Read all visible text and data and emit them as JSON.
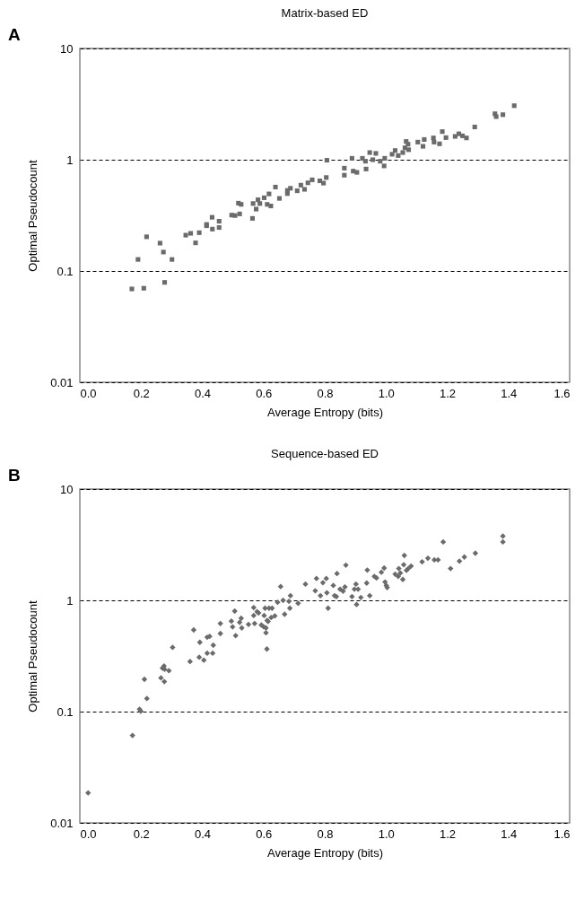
{
  "chart_data": [
    {
      "type": "scatter",
      "title": "Matrix-based ED",
      "xlabel": "Average Entropy (bits)",
      "ylabel": "Optimal Pseudocount",
      "annotations": [
        "A"
      ],
      "color": "#6b6b6b",
      "marker": "square",
      "log": "y",
      "grid": "y",
      "line_style": "dashed",
      "xlim": [
        0,
        1.6
      ],
      "xticks": [
        {
          "value": 0,
          "label": "0.0"
        },
        {
          "value": 0.2,
          "label": "0.2"
        },
        {
          "value": 0.4,
          "label": "0.4"
        },
        {
          "value": 0.6,
          "label": "0.6"
        },
        {
          "value": 0.8,
          "label": "0.8"
        },
        {
          "value": 1,
          "label": "1.0"
        },
        {
          "value": 1.2,
          "label": "1.2"
        },
        {
          "value": 1.4,
          "label": "1.4"
        },
        {
          "value": 1.6,
          "label": "1.6"
        }
      ],
      "ylim": [
        0.01,
        10
      ],
      "yticks": [
        0.01,
        0.1,
        1,
        10
      ],
      "x": [
        0.17,
        0.209,
        0.277,
        0.19,
        0.218,
        0.262,
        0.273,
        0.301,
        0.346,
        0.362,
        0.378,
        0.39,
        0.414,
        0.414,
        0.432,
        0.433,
        0.455,
        0.455,
        0.496,
        0.507,
        0.522,
        0.518,
        0.527,
        0.564,
        0.566,
        0.576,
        0.582,
        0.588,
        0.602,
        0.618,
        0.624,
        0.612,
        0.639,
        0.652,
        0.678,
        0.688,
        0.678,
        0.71,
        0.722,
        0.734,
        0.745,
        0.759,
        0.784,
        0.796,
        0.805,
        0.807,
        0.889,
        0.864,
        0.864,
        0.893,
        0.905,
        0.923,
        0.933,
        0.947,
        0.967,
        0.957,
        0.935,
        0.981,
        0.994,
        0.996,
        1.02,
        1.03,
        1.04,
        1.055,
        1.062,
        1.072,
        1.066,
        1.074,
        1.104,
        1.125,
        1.121,
        1.155,
        1.157,
        1.175,
        1.184,
        1.196,
        1.226,
        1.238,
        1.25,
        1.263,
        1.29,
        1.356,
        1.36,
        1.382,
        1.419
      ],
      "values": [
        0.069,
        0.07,
        0.079,
        0.127,
        0.203,
        0.178,
        0.148,
        0.127,
        0.21,
        0.218,
        0.179,
        0.221,
        0.255,
        0.262,
        0.304,
        0.238,
        0.28,
        0.246,
        0.318,
        0.315,
        0.326,
        0.407,
        0.397,
        0.297,
        0.404,
        0.36,
        0.437,
        0.404,
        0.455,
        0.493,
        0.384,
        0.397,
        0.568,
        0.449,
        0.53,
        0.554,
        0.496,
        0.526,
        0.591,
        0.542,
        0.62,
        0.66,
        0.646,
        0.616,
        0.692,
        0.99,
        1.03,
        0.84,
        0.726,
        0.79,
        0.77,
        1.03,
        0.97,
        1.16,
        1.14,
        1.0,
        0.825,
        0.97,
        0.88,
        1.03,
        1.12,
        1.21,
        1.09,
        1.16,
        1.28,
        1.38,
        1.46,
        1.23,
        1.44,
        1.52,
        1.32,
        1.57,
        1.44,
        1.39,
        1.79,
        1.58,
        1.62,
        1.71,
        1.64,
        1.57,
        1.97,
        2.59,
        2.44,
        2.54,
        3.06
      ]
    },
    {
      "type": "scatter",
      "title": "Sequence-based ED",
      "xlabel": "Average Entropy (bits)",
      "ylabel": "Optimal Pseudocount",
      "annotations": [
        "B"
      ],
      "color": "#6b6b6b",
      "marker": "diamond",
      "log": "y",
      "grid": "y",
      "line_style": "dashed",
      "xlim": [
        0,
        1.6
      ],
      "xticks": [
        {
          "value": 0,
          "label": "0.0"
        },
        {
          "value": 0.2,
          "label": "0.2"
        },
        {
          "value": 0.4,
          "label": "0.4"
        },
        {
          "value": 0.6,
          "label": "0.6"
        },
        {
          "value": 0.8,
          "label": "0.8"
        },
        {
          "value": 1,
          "label": "1.0"
        },
        {
          "value": 1.2,
          "label": "1.2"
        },
        {
          "value": 1.4,
          "label": "1.4"
        },
        {
          "value": 1.6,
          "label": "1.6"
        }
      ],
      "ylim": [
        0.01,
        10
      ],
      "yticks": [
        0.01,
        0.1,
        1,
        10
      ],
      "x": [
        0.027,
        0.172,
        0.195,
        0.199,
        0.219,
        0.211,
        0.265,
        0.276,
        0.27,
        0.277,
        0.291,
        0.275,
        0.303,
        0.36,
        0.372,
        0.39,
        0.405,
        0.392,
        0.416,
        0.434,
        0.416,
        0.424,
        0.436,
        0.459,
        0.459,
        0.499,
        0.509,
        0.495,
        0.506,
        0.522,
        0.527,
        0.529,
        0.551,
        0.571,
        0.568,
        0.568,
        0.579,
        0.584,
        0.593,
        0.6,
        0.608,
        0.608,
        0.611,
        0.602,
        0.605,
        0.618,
        0.628,
        0.612,
        0.625,
        0.615,
        0.637,
        0.646,
        0.656,
        0.664,
        0.669,
        0.683,
        0.688,
        0.686,
        0.713,
        0.737,
        0.773,
        0.769,
        0.786,
        0.794,
        0.805,
        0.807,
        0.811,
        0.869,
        0.84,
        0.828,
        0.85,
        0.86,
        0.866,
        0.832,
        0.838,
        0.889,
        0.897,
        0.902,
        0.909,
        0.904,
        0.918,
        0.939,
        0.937,
        0.947,
        0.962,
        0.969,
        0.985,
        0.994,
        0.997,
        1.001,
        1.004,
        1.03,
        1.04,
        1.047,
        1.055,
        1.042,
        1.058,
        1.06,
        1.067,
        1.073,
        1.082,
        1.118,
        1.137,
        1.158,
        1.17,
        1.187,
        1.211,
        1.24,
        1.256,
        1.292,
        1.382,
        1.382
      ],
      "values": [
        0.0186,
        0.061,
        0.105,
        0.101,
        0.131,
        0.195,
        0.201,
        0.186,
        0.246,
        0.24,
        0.233,
        0.257,
        0.378,
        0.282,
        0.542,
        0.308,
        0.29,
        0.42,
        0.335,
        0.335,
        0.466,
        0.474,
        0.395,
        0.503,
        0.619,
        0.577,
        0.482,
        0.65,
        0.8,
        0.634,
        0.69,
        0.565,
        0.608,
        0.619,
        0.73,
        0.86,
        0.79,
        0.77,
        0.6,
        0.58,
        0.565,
        0.511,
        0.365,
        0.73,
        0.85,
        0.85,
        0.85,
        0.66,
        0.7,
        0.645,
        0.725,
        0.96,
        1.33,
        1.0,
        0.75,
        0.98,
        1.1,
        0.85,
        0.94,
        1.4,
        1.57,
        1.22,
        1.1,
        1.44,
        1.57,
        1.17,
        0.85,
        2.07,
        1.74,
        1.36,
        1.26,
        1.21,
        1.32,
        1.1,
        1.08,
        1.08,
        1.26,
        1.4,
        1.26,
        0.917,
        1.06,
        1.87,
        1.43,
        1.1,
        1.64,
        1.59,
        1.79,
        1.95,
        1.46,
        1.36,
        1.3,
        1.72,
        1.64,
        1.76,
        1.54,
        1.93,
        2.09,
        2.53,
        1.86,
        1.93,
        2.03,
        2.22,
        2.39,
        2.31,
        2.31,
        3.35,
        1.93,
        2.25,
        2.45,
        2.65,
        3.78,
        3.35
      ]
    }
  ]
}
